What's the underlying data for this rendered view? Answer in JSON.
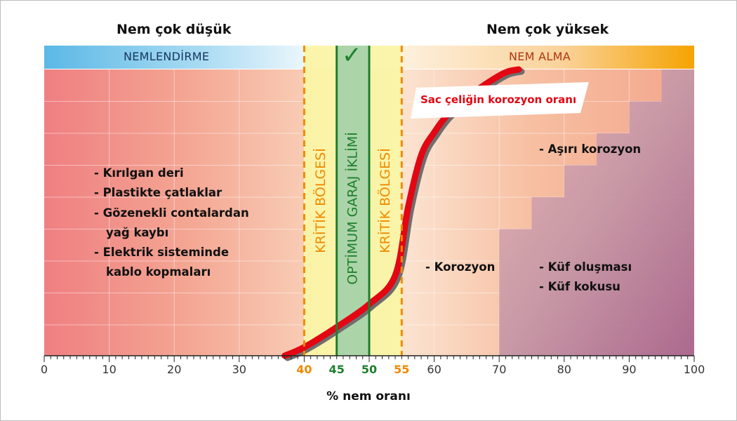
{
  "headers": {
    "left": "Nem çok düşük",
    "right": "Nem çok yüksek"
  },
  "bands": {
    "left_label": "NEMLENDİRME",
    "right_label": "NEM ALMA",
    "critical_label": "KRİTİK BÖLGESİ",
    "optimum_label": "OPTİMUM GARAJ İKLİMİ",
    "check_symbol": "✓"
  },
  "symptoms_low": [
    {
      "lines": [
        "- Kırılgan deri"
      ]
    },
    {
      "lines": [
        "- Plastikte çatlaklar"
      ]
    },
    {
      "lines": [
        "- Gözenekli contalardan",
        "yağ kaybı"
      ]
    },
    {
      "lines": [
        "- Elektrik sisteminde",
        "kablo kopmaları"
      ]
    }
  ],
  "notes_high": {
    "severe_corrosion": "- Aşırı korozyon",
    "corrosion": "- Korozyon",
    "mold": "- Küf oluşması",
    "mold_smell": "- Küf kokusu"
  },
  "colors": {
    "curve": "#e30613",
    "critical_line": "#f08a00",
    "optimum_line": "#1e7f2f",
    "critical_band": "#faf4a6",
    "optimum_band": "#a6d3a8",
    "humidify_band": "#5bb8e6",
    "dehumidify_band": "#f5a300"
  },
  "chart_data": {
    "type": "line",
    "xlabel": "% nem oranı",
    "xlim": [
      0,
      100
    ],
    "x_ticks": [
      0,
      10,
      20,
      30,
      40,
      45,
      50,
      55,
      60,
      70,
      80,
      90,
      100
    ],
    "critical_lines": [
      40,
      55
    ],
    "optimum_lines": [
      45,
      50
    ],
    "critical_range": [
      40,
      55
    ],
    "optimum_range": [
      45,
      50
    ],
    "series": [
      {
        "name": "Sac çeliğin korozyon oranı",
        "x": [
          37,
          40,
          45,
          50,
          54,
          56,
          58,
          60,
          62,
          65,
          68,
          71,
          73
        ],
        "y": [
          0,
          0.03,
          0.1,
          0.18,
          0.28,
          0.52,
          0.7,
          0.78,
          0.84,
          0.9,
          0.95,
          0.99,
          1.0
        ]
      }
    ]
  }
}
